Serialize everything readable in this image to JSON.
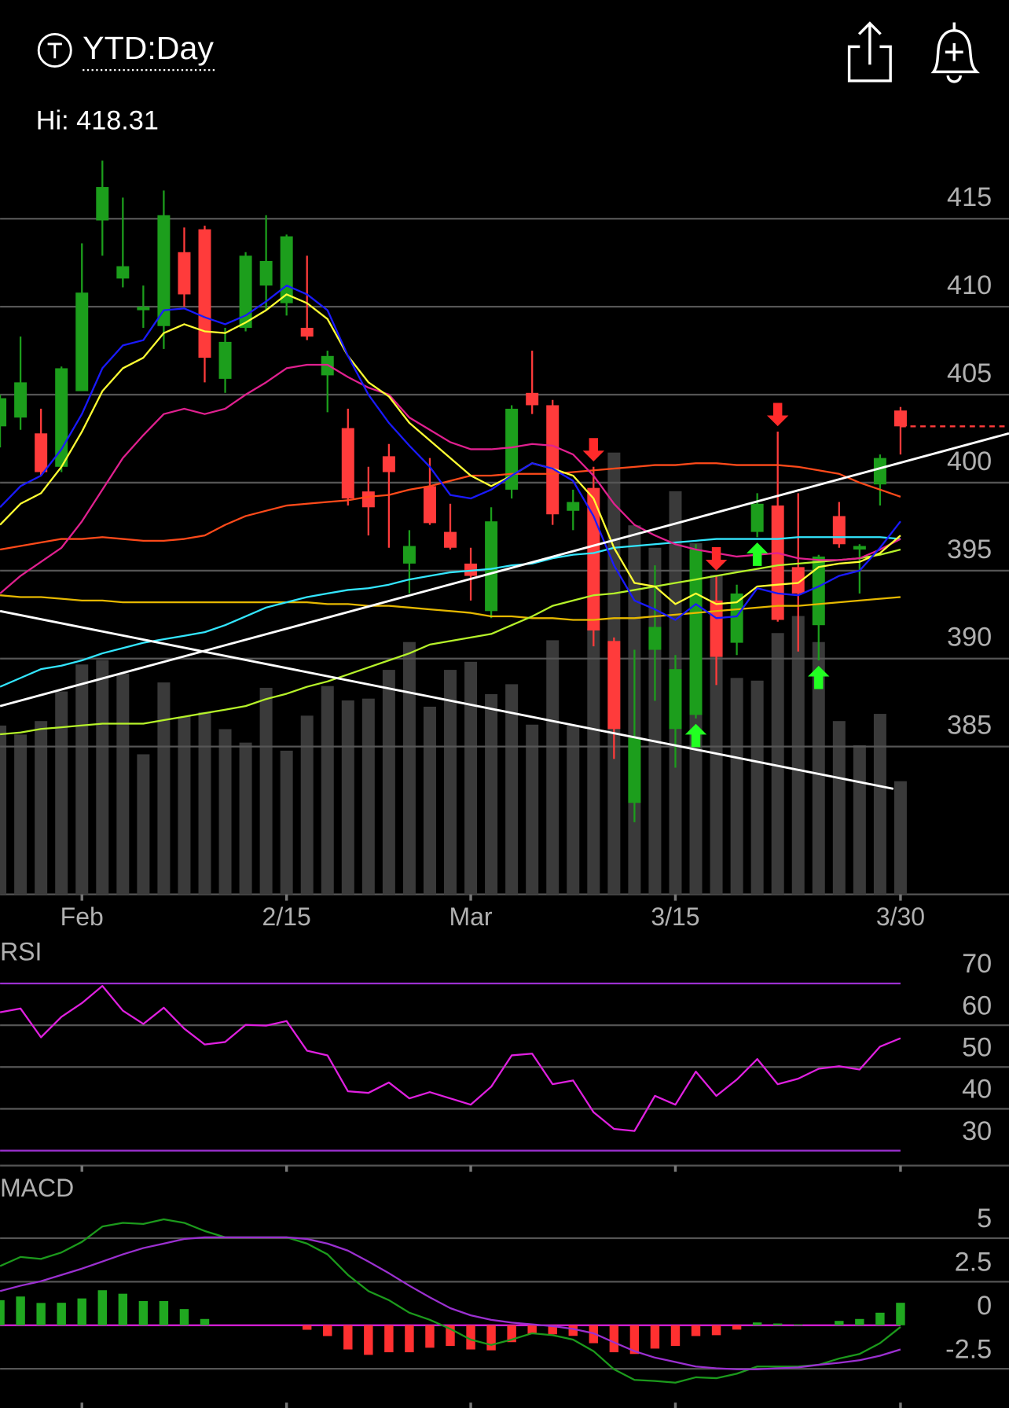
{
  "header": {
    "title": "YTD:Day",
    "high_label": "Hi:",
    "high_value": 418.31
  },
  "chart_data": [
    {
      "type": "candlestick",
      "categories": [
        null,
        null,
        null,
        null,
        "Feb",
        null,
        null,
        null,
        null,
        null,
        null,
        null,
        null,
        null,
        "2/15",
        null,
        null,
        null,
        null,
        null,
        null,
        null,
        null,
        "Mar",
        null,
        null,
        null,
        null,
        null,
        null,
        null,
        null,
        null,
        "3/15",
        null,
        null,
        null,
        null,
        null,
        null,
        null,
        null,
        null,
        null,
        "3/30"
      ],
      "open": [
        403.2,
        403.7,
        402.8,
        400.9,
        405.2,
        414.9,
        411.6,
        409.8,
        408.9,
        413.1,
        414.4,
        405.9,
        408.8,
        411.2,
        410.2,
        408.8,
        406.1,
        403.1,
        399.5,
        401.5,
        395.4,
        399.8,
        397.2,
        395.4,
        392.7,
        399.6,
        405.1,
        404.4,
        398.4,
        399.7,
        391.0,
        381.8,
        390.5,
        386.0,
        386.8,
        393.3,
        390.9,
        397.2,
        398.7,
        395.2,
        391.9,
        398.1,
        396.2,
        399.9,
        404.1
      ],
      "high": [
        405.0,
        408.3,
        404.2,
        406.6,
        413.6,
        418.3,
        416.2,
        411.2,
        416.6,
        414.5,
        414.6,
        408.8,
        413.1,
        415.2,
        414.1,
        412.9,
        407.5,
        404.2,
        400.9,
        402.2,
        397.3,
        401.4,
        398.8,
        396.3,
        398.6,
        404.4,
        407.5,
        404.7,
        399.6,
        400.9,
        391.2,
        390.5,
        395.3,
        390.2,
        396.5,
        394.7,
        394.2,
        399.4,
        402.9,
        399.4,
        395.9,
        398.9,
        396.5,
        401.6,
        404.3
      ],
      "low": [
        402.0,
        403.0,
        400.4,
        400.6,
        405.2,
        412.9,
        411.1,
        408.8,
        407.6,
        410.0,
        405.7,
        405.1,
        408.6,
        409.8,
        409.5,
        408.1,
        404.0,
        398.7,
        397.0,
        396.3,
        393.7,
        397.6,
        396.2,
        393.3,
        392.3,
        399.1,
        403.9,
        397.6,
        397.3,
        390.7,
        384.3,
        380.7,
        387.6,
        383.8,
        386.6,
        388.5,
        390.2,
        396.9,
        392.1,
        390.4,
        389.9,
        396.3,
        393.7,
        398.7,
        401.6
      ],
      "close": [
        404.8,
        405.7,
        400.6,
        406.5,
        410.8,
        416.8,
        412.3,
        410.0,
        415.2,
        410.7,
        407.1,
        408.0,
        412.9,
        412.6,
        414.0,
        408.3,
        407.2,
        399.1,
        398.6,
        400.6,
        396.4,
        397.7,
        396.3,
        394.7,
        397.8,
        404.2,
        404.4,
        398.2,
        398.9,
        391.6,
        386.0,
        385.5,
        391.8,
        389.4,
        396.2,
        390.1,
        393.7,
        398.8,
        392.2,
        393.7,
        395.8,
        396.5,
        396.4,
        401.4,
        403.2
      ],
      "up_color": "#1c9e1c",
      "down_color": "#ff3b3b",
      "ylim": [
        376.6,
        418.5
      ],
      "yticks": [
        385,
        390,
        395,
        400,
        405,
        410,
        415
      ],
      "grid": true,
      "volume": {
        "color": "#3a3a3a",
        "ylim": [
          0,
          800
        ],
        "values": [
          188,
          178,
          193,
          226,
          256,
          261,
          246,
          156,
          236,
          198,
          203,
          184,
          169,
          230,
          160,
          199,
          232,
          216,
          218,
          250,
          281,
          209,
          250,
          259,
          223,
          234,
          189,
          283,
          188,
          296,
          492,
          411,
          386,
          449,
          391,
          356,
          241,
          238,
          291,
          310,
          281,
          193,
          166,
          201,
          126
        ]
      },
      "moving_averages": [
        {
          "color": "#e6b800",
          "values": [
            393.6,
            393.5,
            393.5,
            393.4,
            393.3,
            393.3,
            393.2,
            393.2,
            393.2,
            393.2,
            393.2,
            393.2,
            393.2,
            393.2,
            393.2,
            393.2,
            393.1,
            393.1,
            393.0,
            393.0,
            392.9,
            392.8,
            392.7,
            392.6,
            392.4,
            392.4,
            392.3,
            392.3,
            392.2,
            392.2,
            392.3,
            392.3,
            392.4,
            392.5,
            392.6,
            392.7,
            392.8,
            392.9,
            393.0,
            393.0,
            393.1,
            393.2,
            393.3,
            393.4,
            393.5
          ]
        },
        {
          "color": "#b6f22a",
          "values": [
            385.7,
            385.8,
            386.0,
            386.1,
            386.2,
            386.3,
            386.3,
            386.3,
            386.5,
            386.7,
            386.9,
            387.1,
            387.3,
            387.7,
            388.0,
            388.4,
            388.7,
            389.1,
            389.5,
            389.9,
            390.3,
            390.8,
            391.0,
            391.2,
            391.4,
            391.9,
            392.4,
            393.0,
            393.3,
            393.6,
            393.7,
            393.9,
            394.1,
            394.3,
            394.5,
            394.7,
            394.9,
            395.1,
            395.3,
            395.4,
            395.5,
            395.6,
            395.7,
            395.9,
            396.2
          ]
        },
        {
          "color": "#33e6ff",
          "values": [
            388.4,
            388.9,
            389.4,
            389.6,
            389.9,
            390.3,
            390.6,
            390.9,
            391.1,
            391.3,
            391.5,
            391.9,
            392.4,
            392.9,
            393.2,
            393.5,
            393.7,
            393.9,
            394.0,
            394.2,
            394.5,
            394.7,
            394.9,
            395.0,
            395.1,
            395.3,
            395.4,
            395.7,
            395.9,
            396.0,
            396.3,
            396.4,
            396.5,
            396.6,
            396.7,
            396.8,
            396.8,
            396.8,
            396.8,
            396.9,
            396.9,
            396.9,
            396.9,
            396.9,
            396.8
          ]
        },
        {
          "color": "#ff4a1a",
          "values": [
            396.2,
            396.4,
            396.6,
            396.8,
            396.8,
            396.9,
            396.8,
            396.7,
            396.7,
            396.8,
            397.0,
            397.6,
            398.1,
            398.4,
            398.7,
            398.8,
            398.9,
            399.0,
            399.2,
            399.3,
            399.6,
            399.8,
            400.1,
            400.4,
            400.4,
            400.5,
            400.5,
            400.5,
            400.6,
            400.7,
            400.8,
            400.9,
            401.0,
            401.0,
            401.1,
            401.1,
            401.0,
            401.0,
            401.0,
            400.9,
            400.7,
            400.5,
            400.0,
            399.6,
            399.2
          ]
        },
        {
          "color": "#e0208f",
          "values": [
            393.7,
            394.7,
            395.5,
            396.3,
            397.8,
            399.6,
            401.4,
            402.7,
            403.9,
            404.2,
            403.9,
            404.2,
            405.0,
            405.7,
            406.5,
            406.7,
            406.7,
            406.0,
            405.4,
            405.0,
            403.7,
            403.0,
            402.3,
            401.9,
            401.9,
            402.0,
            402.2,
            402.1,
            401.6,
            400.4,
            398.8,
            397.6,
            397.0,
            396.5,
            396.2,
            396.0,
            395.8,
            395.9,
            396.0,
            395.7,
            395.6,
            395.6,
            395.7,
            396.2,
            396.8
          ]
        },
        {
          "color": "#ffff33",
          "values": [
            397.6,
            398.8,
            399.4,
            400.9,
            402.9,
            405.2,
            406.5,
            407.1,
            408.5,
            409.0,
            408.6,
            408.5,
            409.1,
            409.8,
            410.7,
            410.2,
            409.3,
            407.2,
            405.7,
            404.9,
            403.4,
            402.4,
            401.4,
            400.4,
            399.8,
            400.4,
            401.1,
            400.8,
            400.4,
            399.1,
            396.3,
            394.3,
            394.1,
            393.1,
            393.7,
            393.1,
            393.2,
            394.1,
            394.2,
            394.3,
            395.2,
            395.4,
            395.5,
            396.0,
            397.0
          ]
        },
        {
          "color": "#1a1aff",
          "values": [
            398.6,
            399.8,
            400.4,
            401.9,
            403.9,
            406.5,
            407.8,
            408.1,
            409.8,
            409.9,
            409.4,
            409.0,
            409.5,
            410.3,
            411.2,
            410.7,
            409.8,
            407.2,
            405.0,
            403.4,
            402.1,
            400.9,
            399.3,
            399.1,
            399.6,
            400.4,
            401.1,
            400.8,
            400.1,
            398.1,
            395.3,
            393.3,
            392.8,
            392.2,
            393.1,
            392.3,
            392.4,
            394.0,
            393.7,
            393.6,
            394.1,
            394.7,
            395.0,
            396.3,
            397.8
          ]
        }
      ],
      "trendlines": [
        {
          "color": "#ffffff",
          "x": [
            0,
            49.3
          ],
          "y": [
            387.3,
            402.8
          ]
        },
        {
          "color": "#ffffff",
          "x": [
            0,
            43.65
          ],
          "y": [
            392.7,
            382.6
          ]
        }
      ],
      "signals": [
        {
          "index": 29,
          "direction": "down",
          "color": "#ff2a2a"
        },
        {
          "index": 35,
          "direction": "down",
          "color": "#ff2a2a"
        },
        {
          "index": 38,
          "direction": "down",
          "color": "#ff2a2a"
        },
        {
          "index": 34,
          "direction": "up",
          "color": "#22ff22"
        },
        {
          "index": 37,
          "direction": "up",
          "color": "#22ff22"
        },
        {
          "index": 40,
          "direction": "up",
          "color": "#22ff22"
        }
      ]
    },
    {
      "type": "line",
      "title": "RSI",
      "ylim": [
        26,
        81
      ],
      "yticks": [
        30,
        40,
        50,
        60,
        70
      ],
      "band_color": "#9b30d0",
      "series": [
        {
          "color": "#e020e0",
          "values": [
            63.1,
            64.0,
            57.1,
            62.0,
            65.3,
            69.4,
            63.5,
            60.3,
            64.2,
            59.2,
            55.4,
            56.0,
            60.1,
            59.9,
            61.0,
            53.9,
            52.8,
            44.2,
            43.8,
            46.3,
            42.5,
            44.0,
            42.5,
            41.0,
            45.3,
            52.8,
            53.2,
            45.9,
            46.8,
            39.2,
            35.2,
            34.7,
            43.1,
            41.0,
            48.9,
            43.1,
            47.0,
            51.9,
            45.9,
            47.2,
            49.6,
            50.2,
            49.4,
            54.9,
            56.9
          ]
        }
      ]
    },
    {
      "type": "macd",
      "title": "MACD",
      "ylim": [
        -4.7,
        8.5
      ],
      "yticks": [
        -2.5,
        0,
        2.5,
        5
      ],
      "zero_color": "#e020e0",
      "series": [
        {
          "color": "#1c9a1c",
          "values": [
            3.4,
            3.92,
            3.81,
            4.18,
            4.79,
            5.67,
            5.88,
            5.82,
            6.08,
            5.88,
            5.41,
            5.05,
            5.05,
            5.05,
            5.05,
            4.69,
            4.07,
            2.89,
            1.96,
            1.44,
            0.72,
            0.31,
            -0.21,
            -0.82,
            -1.13,
            -0.82,
            -0.46,
            -0.57,
            -0.82,
            -1.49,
            -2.53,
            -3.14,
            -3.2,
            -3.3,
            -2.99,
            -3.04,
            -2.78,
            -2.37,
            -2.37,
            -2.37,
            -2.27,
            -1.91,
            -1.65,
            -1.03,
            -0.1
          ]
        },
        {
          "color": "#9b30d0",
          "values": [
            1.96,
            2.27,
            2.53,
            2.89,
            3.25,
            3.66,
            4.07,
            4.43,
            4.69,
            4.95,
            5.05,
            5.05,
            5.05,
            5.05,
            5.05,
            4.95,
            4.69,
            4.28,
            3.66,
            2.99,
            2.27,
            1.6,
            0.98,
            0.57,
            0.31,
            0.15,
            0.05,
            -0.05,
            -0.21,
            -0.46,
            -0.98,
            -1.49,
            -1.86,
            -2.11,
            -2.37,
            -2.47,
            -2.53,
            -2.53,
            -2.47,
            -2.42,
            -2.27,
            -2.16,
            -2.01,
            -1.75,
            -1.39
          ]
        }
      ],
      "histogram": {
        "up_color": "#20a820",
        "down_color": "#ff3030",
        "values": [
          1.44,
          1.65,
          1.28,
          1.29,
          1.54,
          2.01,
          1.81,
          1.39,
          1.39,
          0.93,
          0.36,
          0,
          0,
          0,
          0,
          -0.26,
          -0.62,
          -1.39,
          -1.7,
          -1.55,
          -1.55,
          -1.29,
          -1.19,
          -1.39,
          -1.44,
          -0.97,
          -0.51,
          -0.52,
          -0.61,
          -1.03,
          -1.55,
          -1.65,
          -1.34,
          -1.19,
          -0.62,
          -0.57,
          -0.25,
          0.16,
          0.1,
          0.05,
          0,
          0.25,
          0.36,
          0.72,
          1.29
        ]
      }
    }
  ]
}
